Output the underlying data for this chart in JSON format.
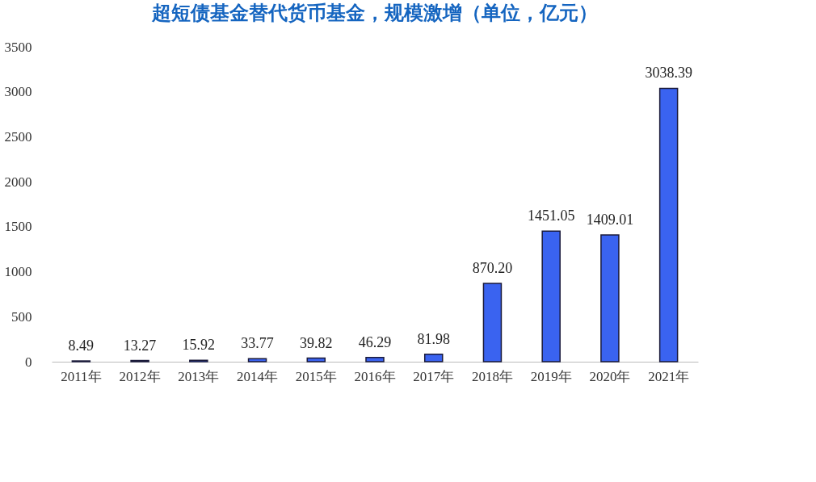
{
  "chart_data": {
    "type": "bar",
    "title": "超短债基金替代货币基金，规模激增（单位，亿元）",
    "categories": [
      "2011年",
      "2012年",
      "2013年",
      "2014年",
      "2015年",
      "2016年",
      "2017年",
      "2018年",
      "2019年",
      "2020年",
      "2021年"
    ],
    "series": [
      {
        "color": "#3a63f0",
        "values": [
          8.49,
          13.27,
          15.92,
          33.77,
          39.82,
          46.29,
          81.98,
          870.2,
          1451.05,
          1409.01,
          3038.39
        ],
        "value_labels": [
          "8.49",
          "13.27",
          "15.92",
          "33.77",
          "39.82",
          "46.29",
          "81.98",
          "870.20",
          "1451.05",
          "1409.01",
          "3038.39"
        ]
      }
    ],
    "ylim": [
      0,
      3500
    ],
    "yticks": [
      0,
      500,
      1000,
      1500,
      2000,
      2500,
      3000,
      3500
    ],
    "grid": false,
    "legend": false
  }
}
